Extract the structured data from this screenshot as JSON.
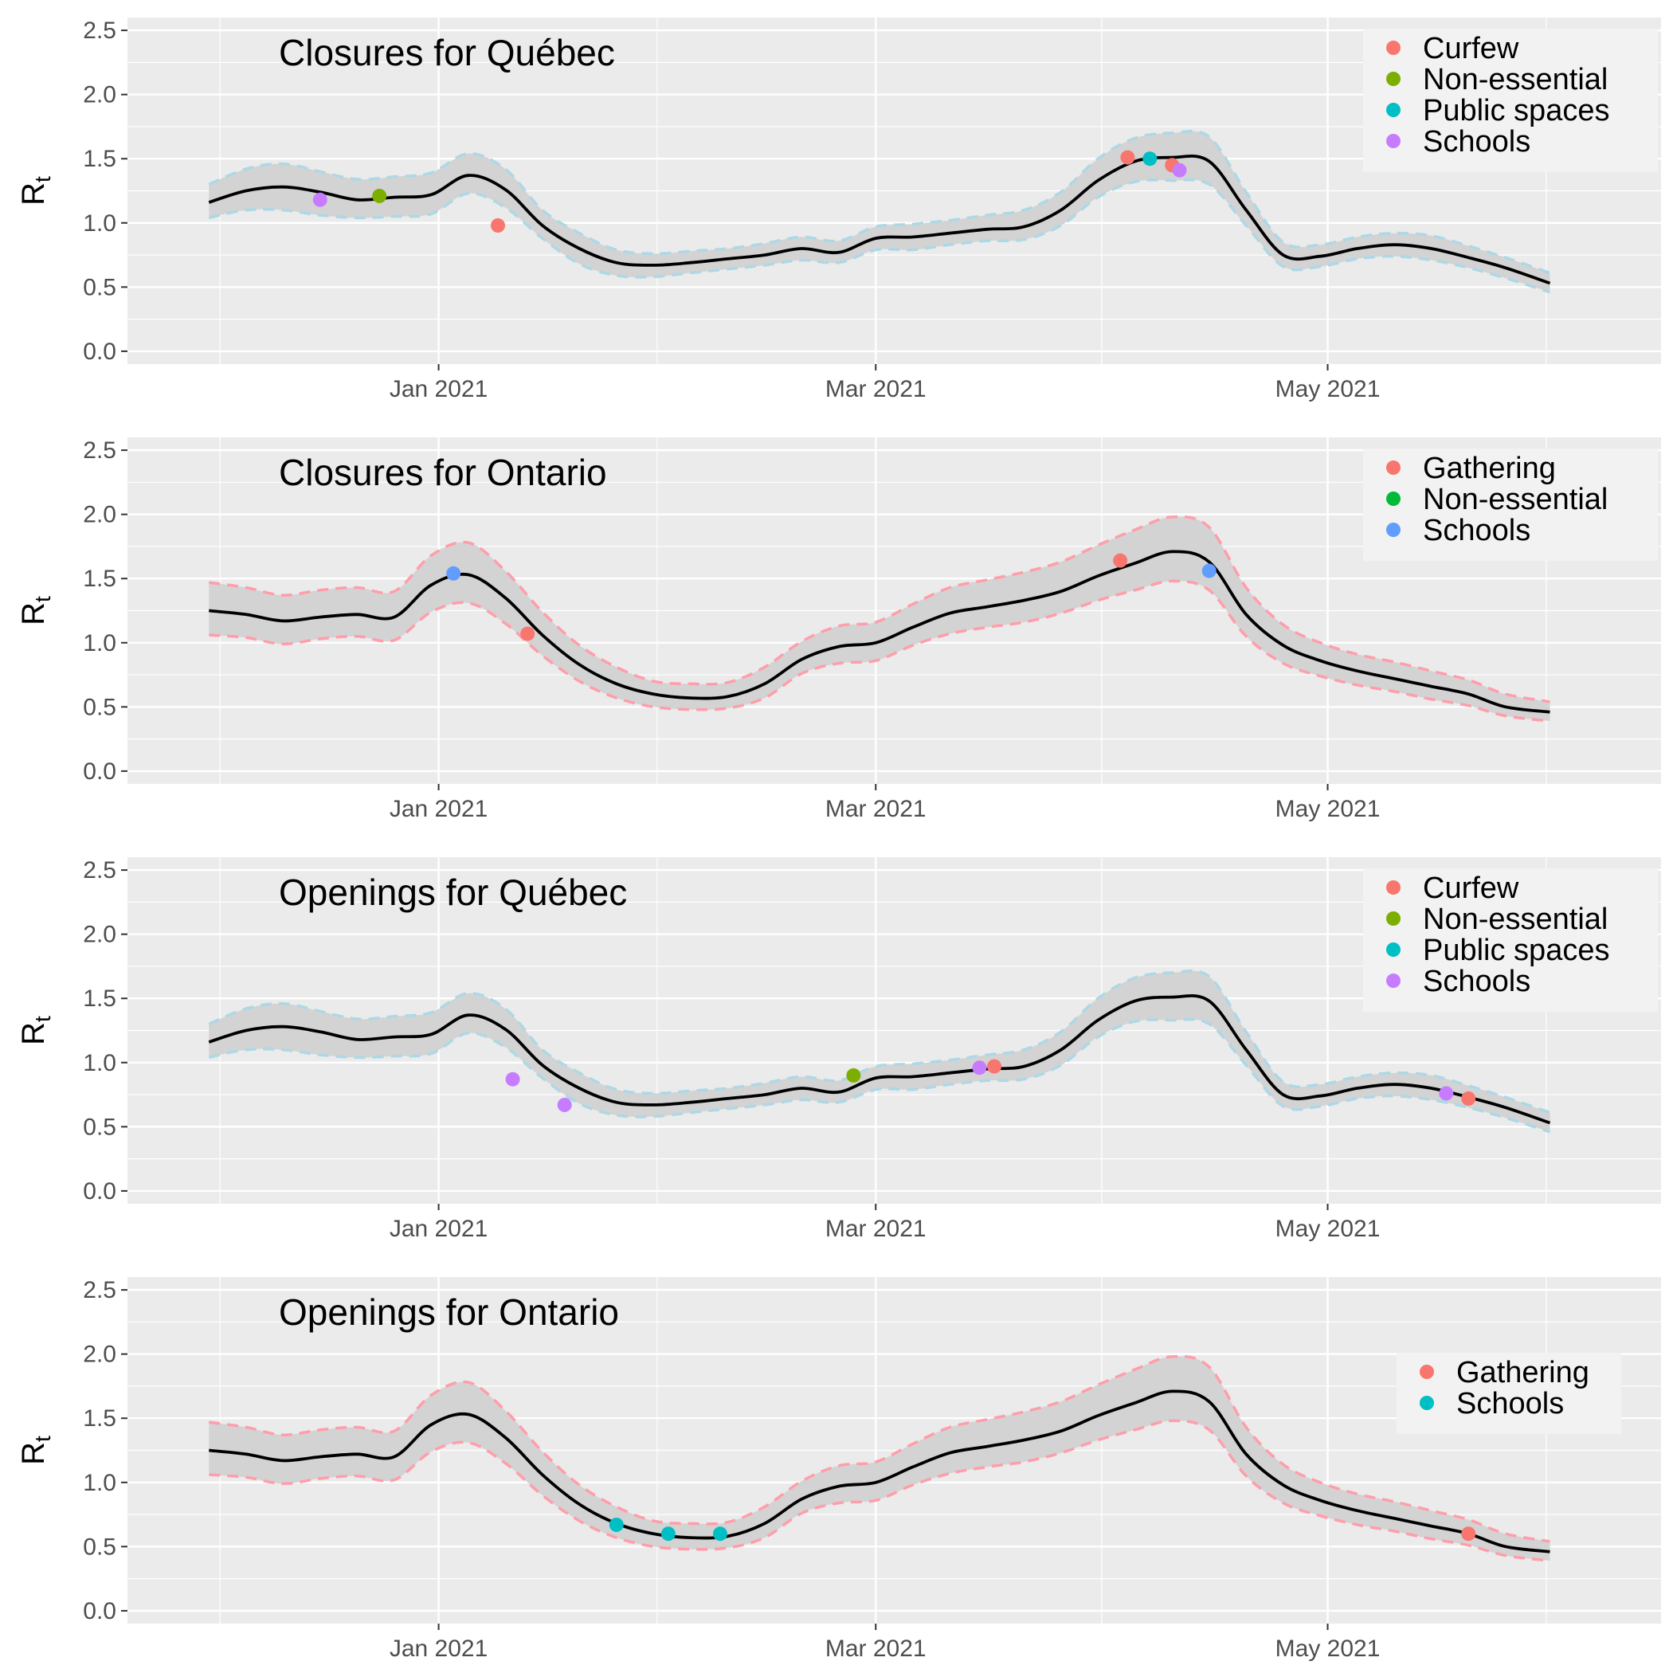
{
  "chart_data": [
    {
      "type": "line",
      "title": "Closures for Québec",
      "ylabel": "R",
      "ylabel_sub": "t",
      "xlim": [
        "2020-11-20",
        "2021-06-15"
      ],
      "ylim": [
        -0.1,
        2.6
      ],
      "yticks": [
        "0.0",
        "0.5",
        "1.0",
        "1.5",
        "2.0",
        "2.5"
      ],
      "xticks": [
        {
          "date": "2021-01-01",
          "label": "Jan 2021"
        },
        {
          "date": "2021-03-01",
          "label": "Mar 2021"
        },
        {
          "date": "2021-05-01",
          "label": "May 2021"
        }
      ],
      "band_color": "#add8e6",
      "series": [
        {
          "x": [
            "2020-12-01",
            "2020-12-06",
            "2020-12-11",
            "2020-12-16",
            "2020-12-21",
            "2020-12-26",
            "2020-12-31",
            "2021-01-05",
            "2021-01-10",
            "2021-01-15",
            "2021-01-20",
            "2021-01-25",
            "2021-01-30",
            "2021-02-04",
            "2021-02-09",
            "2021-02-14",
            "2021-02-19",
            "2021-02-24",
            "2021-03-01",
            "2021-03-06",
            "2021-03-11",
            "2021-03-16",
            "2021-03-21",
            "2021-03-26",
            "2021-03-31",
            "2021-04-05",
            "2021-04-10",
            "2021-04-15",
            "2021-04-20",
            "2021-04-25",
            "2021-04-30",
            "2021-05-05",
            "2021-05-10",
            "2021-05-15",
            "2021-05-20",
            "2021-05-25",
            "2021-05-31"
          ],
          "y": [
            1.16,
            1.25,
            1.28,
            1.24,
            1.18,
            1.2,
            1.22,
            1.37,
            1.26,
            0.98,
            0.8,
            0.69,
            0.67,
            0.69,
            0.72,
            0.75,
            0.8,
            0.77,
            0.88,
            0.89,
            0.92,
            0.95,
            0.97,
            1.1,
            1.33,
            1.48,
            1.51,
            1.48,
            1.1,
            0.75,
            0.74,
            0.8,
            0.83,
            0.8,
            0.73,
            0.65,
            0.53
          ],
          "lower": [
            1.04,
            1.1,
            1.1,
            1.06,
            1.04,
            1.05,
            1.07,
            1.23,
            1.12,
            0.88,
            0.68,
            0.59,
            0.58,
            0.61,
            0.64,
            0.67,
            0.71,
            0.69,
            0.79,
            0.79,
            0.83,
            0.86,
            0.87,
            0.98,
            1.2,
            1.32,
            1.33,
            1.3,
            0.98,
            0.66,
            0.66,
            0.72,
            0.74,
            0.71,
            0.65,
            0.57,
            0.46
          ],
          "upper": [
            1.3,
            1.42,
            1.46,
            1.4,
            1.34,
            1.36,
            1.39,
            1.54,
            1.42,
            1.1,
            0.92,
            0.79,
            0.76,
            0.78,
            0.8,
            0.84,
            0.89,
            0.86,
            0.97,
            0.99,
            1.02,
            1.06,
            1.1,
            1.24,
            1.5,
            1.66,
            1.7,
            1.67,
            1.24,
            0.85,
            0.83,
            0.89,
            0.92,
            0.9,
            0.82,
            0.73,
            0.61
          ]
        }
      ],
      "events": [
        {
          "date": "2020-12-16",
          "y": 1.18,
          "type": "Schools"
        },
        {
          "date": "2020-12-24",
          "y": 1.21,
          "type": "Non-essential"
        },
        {
          "date": "2021-01-09",
          "y": 0.98,
          "type": "Curfew"
        },
        {
          "date": "2021-04-04",
          "y": 1.51,
          "type": "Curfew"
        },
        {
          "date": "2021-04-07",
          "y": 1.5,
          "type": "Public spaces"
        },
        {
          "date": "2021-04-10",
          "y": 1.45,
          "type": "Curfew"
        },
        {
          "date": "2021-04-11",
          "y": 1.41,
          "type": "Schools"
        }
      ],
      "legend": [
        {
          "label": "Curfew",
          "color": "#f8766d"
        },
        {
          "label": "Non-essential",
          "color": "#7cae00"
        },
        {
          "label": "Public spaces",
          "color": "#00bfc4"
        },
        {
          "label": "Schools",
          "color": "#c77cff"
        }
      ],
      "legend_position": "top-right",
      "grid": true
    },
    {
      "type": "line",
      "title": "Closures for Ontario",
      "ylabel": "R",
      "ylabel_sub": "t",
      "xlim": [
        "2020-11-20",
        "2021-06-15"
      ],
      "ylim": [
        -0.1,
        2.6
      ],
      "yticks": [
        "0.0",
        "0.5",
        "1.0",
        "1.5",
        "2.0",
        "2.5"
      ],
      "xticks": [
        {
          "date": "2021-01-01",
          "label": "Jan 2021"
        },
        {
          "date": "2021-03-01",
          "label": "Mar 2021"
        },
        {
          "date": "2021-05-01",
          "label": "May 2021"
        }
      ],
      "band_color": "#ff9eab",
      "series": [
        {
          "x": [
            "2020-12-01",
            "2020-12-06",
            "2020-12-11",
            "2020-12-16",
            "2020-12-21",
            "2020-12-26",
            "2020-12-31",
            "2021-01-05",
            "2021-01-10",
            "2021-01-15",
            "2021-01-20",
            "2021-01-25",
            "2021-01-30",
            "2021-02-04",
            "2021-02-09",
            "2021-02-14",
            "2021-02-19",
            "2021-02-24",
            "2021-03-01",
            "2021-03-06",
            "2021-03-11",
            "2021-03-16",
            "2021-03-21",
            "2021-03-26",
            "2021-03-31",
            "2021-04-05",
            "2021-04-10",
            "2021-04-15",
            "2021-04-20",
            "2021-04-25",
            "2021-04-30",
            "2021-05-05",
            "2021-05-10",
            "2021-05-15",
            "2021-05-20",
            "2021-05-25",
            "2021-05-31"
          ],
          "y": [
            1.25,
            1.22,
            1.17,
            1.2,
            1.22,
            1.2,
            1.45,
            1.53,
            1.35,
            1.06,
            0.83,
            0.68,
            0.6,
            0.57,
            0.58,
            0.68,
            0.87,
            0.97,
            1.0,
            1.12,
            1.23,
            1.28,
            1.33,
            1.4,
            1.52,
            1.62,
            1.71,
            1.63,
            1.22,
            0.98,
            0.86,
            0.78,
            0.72,
            0.66,
            0.6,
            0.5,
            0.46
          ],
          "lower": [
            1.06,
            1.04,
            0.99,
            1.03,
            1.05,
            1.02,
            1.24,
            1.31,
            1.15,
            0.9,
            0.7,
            0.57,
            0.5,
            0.48,
            0.49,
            0.57,
            0.76,
            0.84,
            0.86,
            0.98,
            1.07,
            1.12,
            1.16,
            1.23,
            1.33,
            1.41,
            1.48,
            1.41,
            1.05,
            0.84,
            0.74,
            0.67,
            0.62,
            0.56,
            0.51,
            0.43,
            0.39
          ],
          "upper": [
            1.47,
            1.43,
            1.37,
            1.41,
            1.43,
            1.4,
            1.68,
            1.78,
            1.56,
            1.24,
            0.98,
            0.81,
            0.7,
            0.68,
            0.69,
            0.81,
            1.01,
            1.13,
            1.16,
            1.3,
            1.43,
            1.49,
            1.55,
            1.63,
            1.76,
            1.88,
            1.98,
            1.9,
            1.43,
            1.14,
            1.0,
            0.91,
            0.85,
            0.78,
            0.71,
            0.6,
            0.54
          ]
        }
      ],
      "events": [
        {
          "date": "2021-01-03",
          "y": 1.54,
          "type": "Schools"
        },
        {
          "date": "2021-01-13",
          "y": 1.07,
          "type": "Gathering"
        },
        {
          "date": "2021-04-03",
          "y": 1.64,
          "type": "Gathering"
        },
        {
          "date": "2021-04-15",
          "y": 1.56,
          "type": "Schools"
        }
      ],
      "legend": [
        {
          "label": "Gathering",
          "color": "#f8766d"
        },
        {
          "label": "Non-essential",
          "color": "#00ba38"
        },
        {
          "label": "Schools",
          "color": "#619cff"
        }
      ],
      "legend_position": "top-right",
      "grid": true
    },
    {
      "type": "line",
      "title": "Openings for Québec",
      "ylabel": "R",
      "ylabel_sub": "t",
      "xlim": [
        "2020-11-20",
        "2021-06-15"
      ],
      "ylim": [
        -0.1,
        2.6
      ],
      "yticks": [
        "0.0",
        "0.5",
        "1.0",
        "1.5",
        "2.0",
        "2.5"
      ],
      "xticks": [
        {
          "date": "2021-01-01",
          "label": "Jan 2021"
        },
        {
          "date": "2021-03-01",
          "label": "Mar 2021"
        },
        {
          "date": "2021-05-01",
          "label": "May 2021"
        }
      ],
      "band_color": "#add8e6",
      "series": [
        {
          "x": [
            "2020-12-01",
            "2020-12-06",
            "2020-12-11",
            "2020-12-16",
            "2020-12-21",
            "2020-12-26",
            "2020-12-31",
            "2021-01-05",
            "2021-01-10",
            "2021-01-15",
            "2021-01-20",
            "2021-01-25",
            "2021-01-30",
            "2021-02-04",
            "2021-02-09",
            "2021-02-14",
            "2021-02-19",
            "2021-02-24",
            "2021-03-01",
            "2021-03-06",
            "2021-03-11",
            "2021-03-16",
            "2021-03-21",
            "2021-03-26",
            "2021-03-31",
            "2021-04-05",
            "2021-04-10",
            "2021-04-15",
            "2021-04-20",
            "2021-04-25",
            "2021-04-30",
            "2021-05-05",
            "2021-05-10",
            "2021-05-15",
            "2021-05-20",
            "2021-05-25",
            "2021-05-31"
          ],
          "y": [
            1.16,
            1.25,
            1.28,
            1.24,
            1.18,
            1.2,
            1.22,
            1.37,
            1.26,
            0.98,
            0.8,
            0.69,
            0.67,
            0.69,
            0.72,
            0.75,
            0.8,
            0.77,
            0.88,
            0.89,
            0.92,
            0.95,
            0.97,
            1.1,
            1.33,
            1.48,
            1.51,
            1.48,
            1.1,
            0.75,
            0.74,
            0.8,
            0.83,
            0.8,
            0.73,
            0.65,
            0.53
          ],
          "lower": [
            1.04,
            1.1,
            1.1,
            1.06,
            1.04,
            1.05,
            1.07,
            1.23,
            1.12,
            0.88,
            0.68,
            0.59,
            0.58,
            0.61,
            0.64,
            0.67,
            0.71,
            0.69,
            0.79,
            0.79,
            0.83,
            0.86,
            0.87,
            0.98,
            1.2,
            1.32,
            1.33,
            1.3,
            0.98,
            0.66,
            0.66,
            0.72,
            0.74,
            0.71,
            0.65,
            0.57,
            0.46
          ],
          "upper": [
            1.3,
            1.42,
            1.46,
            1.4,
            1.34,
            1.36,
            1.39,
            1.54,
            1.42,
            1.1,
            0.92,
            0.79,
            0.76,
            0.78,
            0.8,
            0.84,
            0.89,
            0.86,
            0.97,
            0.99,
            1.02,
            1.06,
            1.1,
            1.24,
            1.5,
            1.66,
            1.7,
            1.67,
            1.24,
            0.85,
            0.83,
            0.89,
            0.92,
            0.9,
            0.82,
            0.73,
            0.61
          ]
        }
      ],
      "events": [
        {
          "date": "2021-01-11",
          "y": 0.87,
          "type": "Schools"
        },
        {
          "date": "2021-01-18",
          "y": 0.67,
          "type": "Schools"
        },
        {
          "date": "2021-02-26",
          "y": 0.9,
          "type": "Non-essential"
        },
        {
          "date": "2021-03-15",
          "y": 0.96,
          "type": "Schools"
        },
        {
          "date": "2021-03-17",
          "y": 0.97,
          "type": "Curfew"
        },
        {
          "date": "2021-05-17",
          "y": 0.76,
          "type": "Schools"
        },
        {
          "date": "2021-05-20",
          "y": 0.72,
          "type": "Curfew"
        }
      ],
      "legend": [
        {
          "label": "Curfew",
          "color": "#f8766d"
        },
        {
          "label": "Non-essential",
          "color": "#7cae00"
        },
        {
          "label": "Public spaces",
          "color": "#00bfc4"
        },
        {
          "label": "Schools",
          "color": "#c77cff"
        }
      ],
      "legend_position": "top-right",
      "grid": true
    },
    {
      "type": "line",
      "title": "Openings for Ontario",
      "ylabel": "R",
      "ylabel_sub": "t",
      "xlim": [
        "2020-11-20",
        "2021-06-15"
      ],
      "ylim": [
        -0.1,
        2.6
      ],
      "yticks": [
        "0.0",
        "0.5",
        "1.0",
        "1.5",
        "2.0",
        "2.5"
      ],
      "xticks": [
        {
          "date": "2021-01-01",
          "label": "Jan 2021"
        },
        {
          "date": "2021-03-01",
          "label": "Mar 2021"
        },
        {
          "date": "2021-05-01",
          "label": "May 2021"
        }
      ],
      "band_color": "#ff9eab",
      "series": [
        {
          "x": [
            "2020-12-01",
            "2020-12-06",
            "2020-12-11",
            "2020-12-16",
            "2020-12-21",
            "2020-12-26",
            "2020-12-31",
            "2021-01-05",
            "2021-01-10",
            "2021-01-15",
            "2021-01-20",
            "2021-01-25",
            "2021-01-30",
            "2021-02-04",
            "2021-02-09",
            "2021-02-14",
            "2021-02-19",
            "2021-02-24",
            "2021-03-01",
            "2021-03-06",
            "2021-03-11",
            "2021-03-16",
            "2021-03-21",
            "2021-03-26",
            "2021-03-31",
            "2021-04-05",
            "2021-04-10",
            "2021-04-15",
            "2021-04-20",
            "2021-04-25",
            "2021-04-30",
            "2021-05-05",
            "2021-05-10",
            "2021-05-15",
            "2021-05-20",
            "2021-05-25",
            "2021-05-31"
          ],
          "y": [
            1.25,
            1.22,
            1.17,
            1.2,
            1.22,
            1.2,
            1.45,
            1.53,
            1.35,
            1.06,
            0.83,
            0.68,
            0.6,
            0.57,
            0.58,
            0.68,
            0.87,
            0.97,
            1.0,
            1.12,
            1.23,
            1.28,
            1.33,
            1.4,
            1.52,
            1.62,
            1.71,
            1.63,
            1.22,
            0.98,
            0.86,
            0.78,
            0.72,
            0.66,
            0.6,
            0.5,
            0.46
          ],
          "lower": [
            1.06,
            1.04,
            0.99,
            1.03,
            1.05,
            1.02,
            1.24,
            1.31,
            1.15,
            0.9,
            0.7,
            0.57,
            0.5,
            0.48,
            0.49,
            0.57,
            0.76,
            0.84,
            0.86,
            0.98,
            1.07,
            1.12,
            1.16,
            1.23,
            1.33,
            1.41,
            1.48,
            1.41,
            1.05,
            0.84,
            0.74,
            0.67,
            0.62,
            0.56,
            0.51,
            0.43,
            0.39
          ],
          "upper": [
            1.47,
            1.43,
            1.37,
            1.41,
            1.43,
            1.4,
            1.68,
            1.78,
            1.56,
            1.24,
            0.98,
            0.81,
            0.7,
            0.68,
            0.69,
            0.81,
            1.01,
            1.13,
            1.16,
            1.3,
            1.43,
            1.49,
            1.55,
            1.63,
            1.76,
            1.88,
            1.98,
            1.9,
            1.43,
            1.14,
            1.0,
            0.91,
            0.85,
            0.78,
            0.71,
            0.6,
            0.54
          ]
        }
      ],
      "events": [
        {
          "date": "2021-01-25",
          "y": 0.67,
          "type": "Schools"
        },
        {
          "date": "2021-02-01",
          "y": 0.6,
          "type": "Schools"
        },
        {
          "date": "2021-02-08",
          "y": 0.6,
          "type": "Schools"
        },
        {
          "date": "2021-05-20",
          "y": 0.6,
          "type": "Gathering"
        }
      ],
      "legend": [
        {
          "label": "Gathering",
          "color": "#f8766d"
        },
        {
          "label": "Schools",
          "color": "#00bfc4"
        }
      ],
      "legend_position": "top-right",
      "grid": true
    }
  ]
}
